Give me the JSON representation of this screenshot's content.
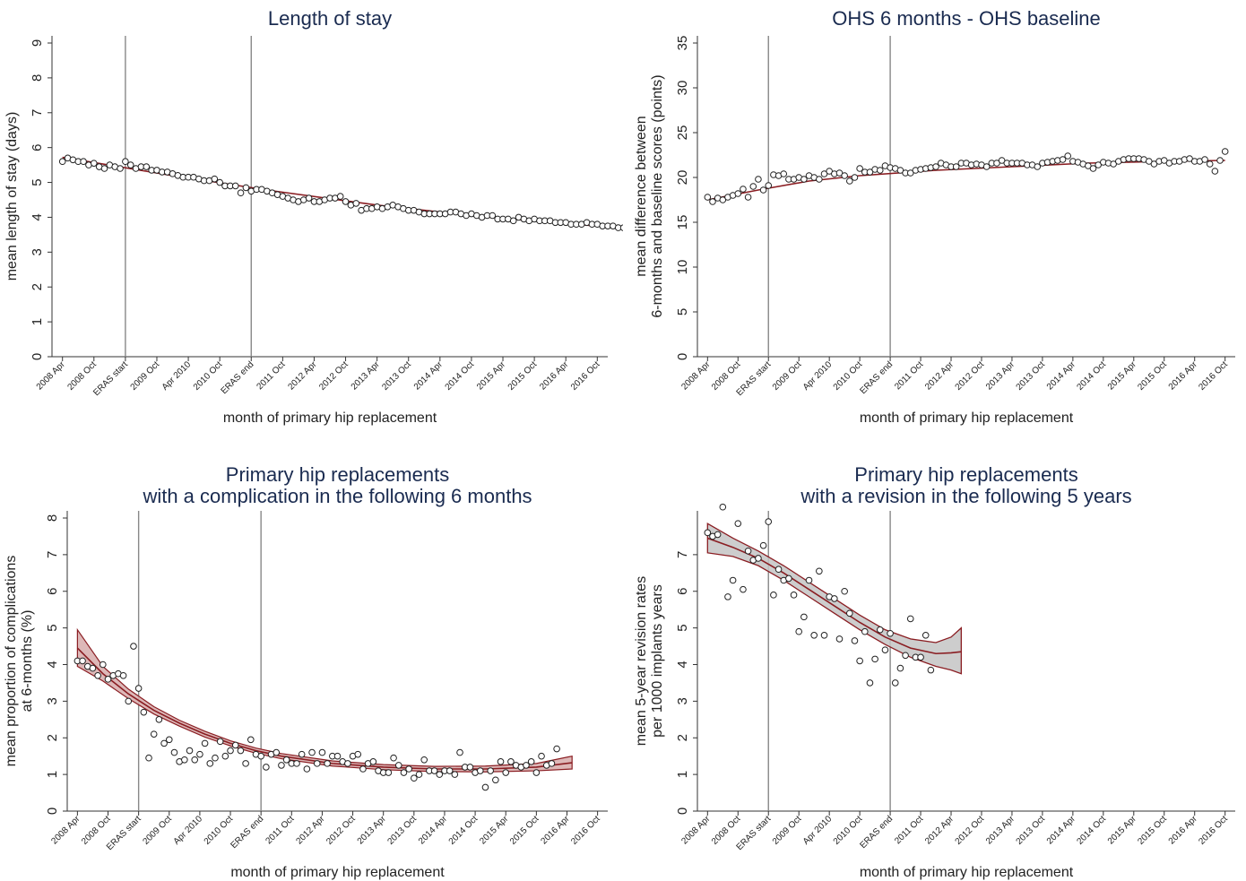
{
  "figure": {
    "xtick_labels": [
      "2008 Apr",
      "2008 Oct",
      "ERAS start",
      "2009 Oct",
      "Apr 2010",
      "2010 Oct",
      "ERAS end",
      "2011 Oct",
      "2012 Apr",
      "2012 Oct",
      "2013 Apr",
      "2013 Oct",
      "2014 Apr",
      "2014 Oct",
      "2015 Apr",
      "2015 Oct",
      "2016 Apr",
      "2016 Oct"
    ],
    "xtick_labels_panel4": [
      "2008 Apr",
      "2008 Oct",
      "ERAS start",
      "2009 Oct",
      "Apr 2010",
      "2010 Oct",
      "ERAS end",
      "2011 Oct",
      "2012 Apr",
      "2012 Oct",
      "2013 Apr",
      "2013 Oct",
      "2014 Apr",
      "2014 Oct",
      "2015 Apr",
      "2015 Oct",
      "2016 Apr",
      "2016 Oct"
    ],
    "xlabel": "month of primary hip replacement",
    "colors": {
      "title": "#1a2b50",
      "fit_line": "#8a1d22",
      "ci_band": "#c4c4c4",
      "vline": "#888888"
    }
  },
  "chart_data": [
    {
      "type": "scatter",
      "title": "Length of stay",
      "ylabel": "mean length of stay (days)",
      "xlabel": "month of primary hip replacement",
      "ylim": [
        0,
        9
      ],
      "yticks": [
        0,
        1,
        2,
        3,
        4,
        5,
        6,
        7,
        8,
        9
      ],
      "xlim_month_index": [
        0,
        103
      ],
      "vertical_lines_at": [
        "ERAS start",
        "ERAS end"
      ],
      "fit_line": [
        [
          0,
          5.72
        ],
        [
          20,
          5.22
        ],
        [
          40,
          4.76
        ],
        [
          60,
          4.35
        ],
        [
          80,
          4.02
        ],
        [
          102,
          3.75
        ]
      ],
      "y": [
        5.6,
        5.7,
        5.65,
        5.6,
        5.6,
        5.5,
        5.55,
        5.45,
        5.4,
        5.5,
        5.45,
        5.4,
        5.6,
        5.5,
        5.4,
        5.45,
        5.45,
        5.35,
        5.35,
        5.3,
        5.3,
        5.25,
        5.2,
        5.15,
        5.15,
        5.15,
        5.1,
        5.05,
        5.05,
        5.1,
        5.0,
        4.9,
        4.9,
        4.9,
        4.7,
        4.85,
        4.75,
        4.8,
        4.8,
        4.75,
        4.7,
        4.65,
        4.6,
        4.55,
        4.5,
        4.45,
        4.5,
        4.55,
        4.45,
        4.45,
        4.5,
        4.55,
        4.55,
        4.6,
        4.45,
        4.35,
        4.4,
        4.2,
        4.25,
        4.25,
        4.3,
        4.25,
        4.3,
        4.35,
        4.3,
        4.25,
        4.2,
        4.2,
        4.15,
        4.1,
        4.1,
        4.1,
        4.1,
        4.1,
        4.15,
        4.15,
        4.1,
        4.05,
        4.1,
        4.05,
        4.0,
        4.05,
        4.05,
        3.95,
        3.95,
        3.95,
        3.9,
        4.0,
        3.95,
        3.9,
        3.95,
        3.9,
        3.9,
        3.9,
        3.85,
        3.85,
        3.85,
        3.8,
        3.8,
        3.8,
        3.85,
        3.8,
        3.8,
        3.75,
        3.75,
        3.75,
        3.7,
        3.7,
        3.65
      ]
    },
    {
      "type": "scatter",
      "title": "OHS 6 months - OHS baseline",
      "ylabel": "mean difference between 6-months and baseline scores (points)",
      "ylabel_lines": [
        "mean difference between",
        "6-months and baseline scores (points)"
      ],
      "xlabel": "month of primary hip replacement",
      "ylim": [
        0,
        35
      ],
      "yticks": [
        0,
        5,
        10,
        15,
        20,
        25,
        30,
        35
      ],
      "xlim_month_index": [
        0,
        103
      ],
      "vertical_lines_at": [
        "ERAS start",
        "ERAS end"
      ],
      "fit_line": [
        [
          0,
          17.5
        ],
        [
          10,
          18.6
        ],
        [
          20,
          19.6
        ],
        [
          30,
          20.2
        ],
        [
          45,
          20.8
        ],
        [
          60,
          21.2
        ],
        [
          75,
          21.6
        ],
        [
          90,
          21.8
        ],
        [
          102,
          21.9
        ]
      ],
      "y": [
        17.8,
        17.3,
        17.7,
        17.5,
        17.8,
        18.0,
        18.2,
        18.7,
        17.8,
        19.0,
        19.8,
        18.6,
        19.1,
        20.3,
        20.2,
        20.4,
        19.8,
        19.8,
        20.0,
        19.8,
        20.2,
        20.0,
        19.8,
        20.4,
        20.7,
        20.4,
        20.5,
        20.2,
        19.6,
        20.0,
        21.0,
        20.6,
        20.6,
        20.9,
        20.8,
        21.3,
        21.1,
        21.0,
        20.8,
        20.5,
        20.5,
        20.8,
        20.9,
        21.0,
        21.1,
        21.2,
        21.6,
        21.4,
        21.2,
        21.2,
        21.6,
        21.6,
        21.4,
        21.5,
        21.4,
        21.2,
        21.6,
        21.6,
        21.9,
        21.6,
        21.6,
        21.6,
        21.6,
        21.4,
        21.4,
        21.2,
        21.6,
        21.7,
        21.8,
        21.9,
        22.0,
        22.4,
        21.8,
        21.7,
        21.5,
        21.3,
        21.0,
        21.4,
        21.7,
        21.6,
        21.5,
        21.8,
        22.0,
        22.1,
        22.1,
        22.1,
        22.0,
        21.8,
        21.5,
        21.8,
        21.9,
        21.6,
        21.8,
        21.8,
        22.0,
        22.1,
        21.8,
        21.8,
        22.0,
        21.5,
        20.7,
        21.9,
        22.9
      ]
    },
    {
      "type": "scatter",
      "title": "Primary hip replacements\nwith a complication in the following 6 months",
      "title_lines": [
        "Primary hip replacements",
        "with a complication in the following 6 months"
      ],
      "ylabel": "mean proportion of complications at 6-months (%)",
      "ylabel_lines": [
        "mean proportion of complications",
        "at 6-months (%)"
      ],
      "xlabel": "month of primary hip replacement",
      "ylim": [
        0,
        8
      ],
      "yticks": [
        0,
        1,
        2,
        3,
        4,
        5,
        6,
        7,
        8
      ],
      "xlim_month_index": [
        0,
        103
      ],
      "vertical_lines_at": [
        "ERAS start",
        "ERAS end"
      ],
      "fit_line": [
        [
          0,
          4.45
        ],
        [
          5,
          3.75
        ],
        [
          10,
          3.2
        ],
        [
          15,
          2.75
        ],
        [
          20,
          2.4
        ],
        [
          25,
          2.1
        ],
        [
          30,
          1.85
        ],
        [
          35,
          1.65
        ],
        [
          40,
          1.5
        ],
        [
          50,
          1.3
        ],
        [
          60,
          1.2
        ],
        [
          70,
          1.15
        ],
        [
          80,
          1.15
        ],
        [
          90,
          1.2
        ],
        [
          97,
          1.32
        ]
      ],
      "ci_upper": [
        [
          0,
          4.95
        ],
        [
          5,
          3.95
        ],
        [
          10,
          3.33
        ],
        [
          15,
          2.85
        ],
        [
          20,
          2.48
        ],
        [
          25,
          2.18
        ],
        [
          30,
          1.92
        ],
        [
          35,
          1.72
        ],
        [
          40,
          1.57
        ],
        [
          50,
          1.37
        ],
        [
          60,
          1.27
        ],
        [
          70,
          1.22
        ],
        [
          80,
          1.23
        ],
        [
          90,
          1.3
        ],
        [
          97,
          1.5
        ]
      ],
      "ci_lower": [
        [
          0,
          3.95
        ],
        [
          5,
          3.55
        ],
        [
          10,
          3.07
        ],
        [
          15,
          2.65
        ],
        [
          20,
          2.32
        ],
        [
          25,
          2.02
        ],
        [
          30,
          1.78
        ],
        [
          35,
          1.58
        ],
        [
          40,
          1.43
        ],
        [
          50,
          1.23
        ],
        [
          60,
          1.13
        ],
        [
          70,
          1.08
        ],
        [
          80,
          1.07
        ],
        [
          90,
          1.1
        ],
        [
          97,
          1.15
        ]
      ],
      "y": [
        4.1,
        4.1,
        3.95,
        3.9,
        3.7,
        4.0,
        3.6,
        3.7,
        3.75,
        3.7,
        3.0,
        4.5,
        3.35,
        2.7,
        1.45,
        2.1,
        2.5,
        1.85,
        1.95,
        1.6,
        1.35,
        1.4,
        1.65,
        1.4,
        1.55,
        1.85,
        1.3,
        1.45,
        1.9,
        1.5,
        1.65,
        1.8,
        1.65,
        1.3,
        1.95,
        1.55,
        1.5,
        1.2,
        1.55,
        1.6,
        1.25,
        1.4,
        1.3,
        1.3,
        1.55,
        1.15,
        1.6,
        1.3,
        1.6,
        1.3,
        1.5,
        1.5,
        1.35,
        1.3,
        1.5,
        1.55,
        1.15,
        1.3,
        1.35,
        1.1,
        1.05,
        1.05,
        1.45,
        1.25,
        1.05,
        1.15,
        0.9,
        1.0,
        1.4,
        1.1,
        1.1,
        1.0,
        1.1,
        1.1,
        1.0,
        1.6,
        1.2,
        1.2,
        1.05,
        1.1,
        0.65,
        1.1,
        0.85,
        1.35,
        1.05,
        1.35,
        1.25,
        1.2,
        1.25,
        1.35,
        1.05,
        1.5,
        1.25,
        1.3,
        1.7
      ]
    },
    {
      "type": "scatter",
      "title": "Primary hip replacements\nwith a revision in the following 5 years",
      "title_lines": [
        "Primary hip replacements",
        "with a revision in the following 5 years"
      ],
      "ylabel": "mean 5-year revision rates per 1000 implants years",
      "ylabel_lines": [
        "mean 5-year revision rates",
        "per 1000 implants years"
      ],
      "xlabel": "month of primary hip replacement",
      "ylim": [
        0,
        8
      ],
      "yticks": [
        0,
        1,
        2,
        3,
        4,
        5,
        6,
        7
      ],
      "xlim_month_index": [
        0,
        103
      ],
      "vertical_lines_at": [
        "ERAS start",
        "ERAS end"
      ],
      "fit_line": [
        [
          0,
          7.45
        ],
        [
          5,
          7.2
        ],
        [
          10,
          6.9
        ],
        [
          15,
          6.5
        ],
        [
          20,
          6.05
        ],
        [
          25,
          5.6
        ],
        [
          30,
          5.15
        ],
        [
          35,
          4.75
        ],
        [
          40,
          4.45
        ],
        [
          45,
          4.3
        ],
        [
          48,
          4.32
        ],
        [
          50,
          4.35
        ]
      ],
      "ci_upper": [
        [
          0,
          7.85
        ],
        [
          5,
          7.45
        ],
        [
          10,
          7.1
        ],
        [
          15,
          6.7
        ],
        [
          20,
          6.25
        ],
        [
          25,
          5.8
        ],
        [
          30,
          5.35
        ],
        [
          35,
          4.95
        ],
        [
          40,
          4.7
        ],
        [
          45,
          4.6
        ],
        [
          48,
          4.75
        ],
        [
          50,
          5.0
        ]
      ],
      "ci_lower": [
        [
          0,
          7.05
        ],
        [
          5,
          6.95
        ],
        [
          10,
          6.7
        ],
        [
          15,
          6.3
        ],
        [
          20,
          5.85
        ],
        [
          25,
          5.4
        ],
        [
          30,
          4.95
        ],
        [
          35,
          4.55
        ],
        [
          40,
          4.2
        ],
        [
          45,
          3.95
        ],
        [
          48,
          3.85
        ],
        [
          50,
          3.75
        ]
      ],
      "points": [
        [
          0,
          7.6
        ],
        [
          1,
          7.5
        ],
        [
          2,
          7.55
        ],
        [
          3,
          8.3
        ],
        [
          4,
          5.85
        ],
        [
          5,
          6.3
        ],
        [
          6,
          7.85
        ],
        [
          7,
          6.05
        ],
        [
          8,
          7.1
        ],
        [
          9,
          6.85
        ],
        [
          10,
          6.9
        ],
        [
          11,
          7.25
        ],
        [
          12,
          7.9
        ],
        [
          13,
          5.9
        ],
        [
          14,
          6.6
        ],
        [
          15,
          6.3
        ],
        [
          16,
          6.35
        ],
        [
          17,
          5.9
        ],
        [
          18,
          4.9
        ],
        [
          19,
          5.3
        ],
        [
          20,
          6.3
        ],
        [
          21,
          4.8
        ],
        [
          22,
          6.55
        ],
        [
          23,
          4.8
        ],
        [
          24,
          5.85
        ],
        [
          25,
          5.8
        ],
        [
          26,
          4.7
        ],
        [
          27,
          6.0
        ],
        [
          28,
          5.4
        ],
        [
          29,
          4.65
        ],
        [
          30,
          4.1
        ],
        [
          31,
          4.9
        ],
        [
          32,
          3.5
        ],
        [
          33,
          4.15
        ],
        [
          34,
          4.95
        ],
        [
          35,
          4.4
        ],
        [
          36,
          4.85
        ],
        [
          37,
          3.5
        ],
        [
          38,
          3.9
        ],
        [
          39,
          4.25
        ],
        [
          40,
          5.25
        ],
        [
          41,
          4.2
        ],
        [
          42,
          4.2
        ],
        [
          43,
          4.8
        ],
        [
          44,
          3.85
        ]
      ]
    }
  ]
}
